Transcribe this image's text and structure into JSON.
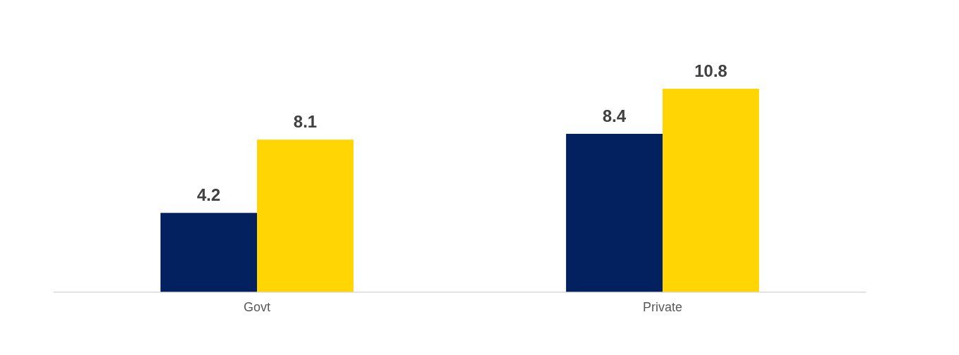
{
  "chart_data": {
    "type": "bar",
    "categories": [
      "Govt",
      "Private"
    ],
    "series": [
      {
        "color": "#03215f",
        "values": [
          4.2,
          8.4
        ]
      },
      {
        "color": "#ffd503",
        "values": [
          8.1,
          10.8
        ]
      }
    ],
    "data_labels": true,
    "grid": false,
    "legend": false,
    "tick_labels": "x"
  }
}
